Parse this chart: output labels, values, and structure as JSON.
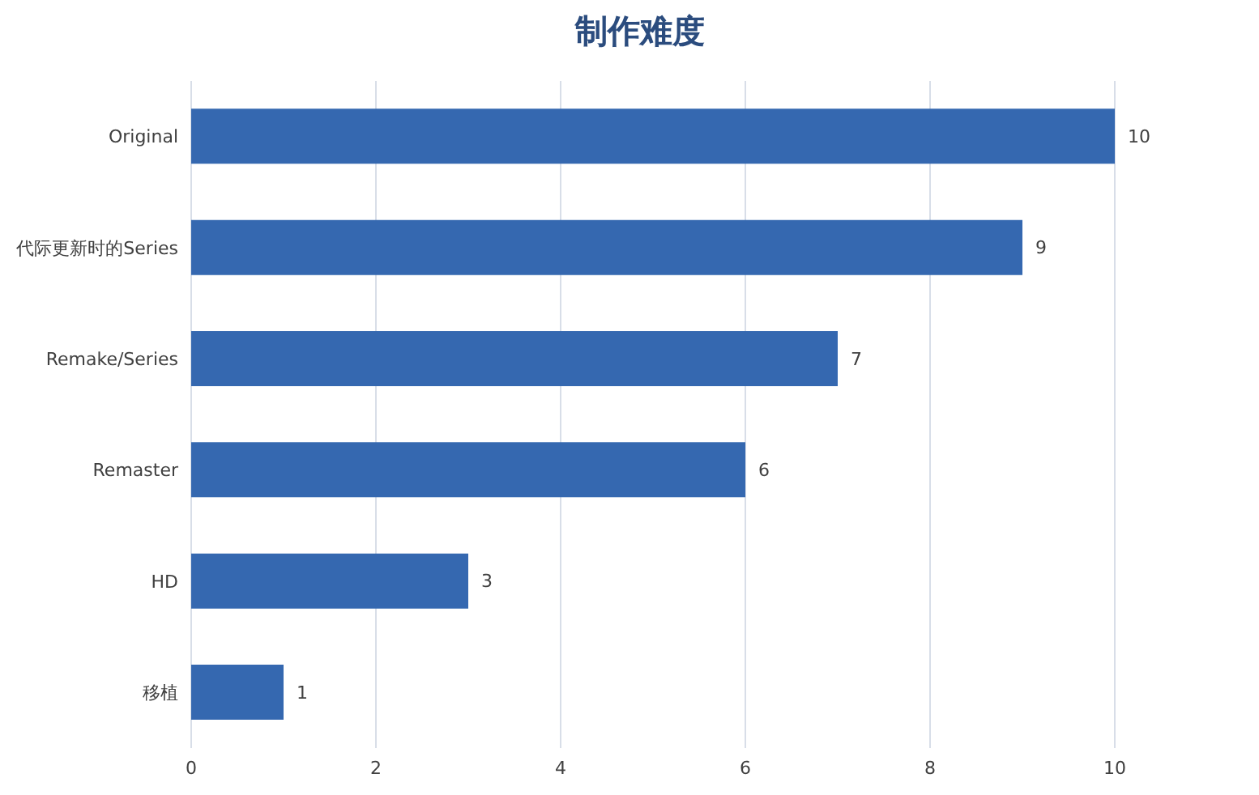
{
  "chart_data": {
    "type": "bar",
    "title": "制作难度",
    "orientation": "horizontal",
    "categories": [
      "Original",
      "代际更新时的Series",
      "Remake/Series",
      "Remaster",
      "HD",
      "移植"
    ],
    "values": [
      10,
      9,
      7,
      6,
      3,
      1
    ],
    "color": "#3568b0",
    "xlim": [
      0,
      10
    ],
    "xticks": [
      0,
      2,
      4,
      6,
      8,
      10
    ],
    "grid": "x",
    "data_labels": true
  }
}
